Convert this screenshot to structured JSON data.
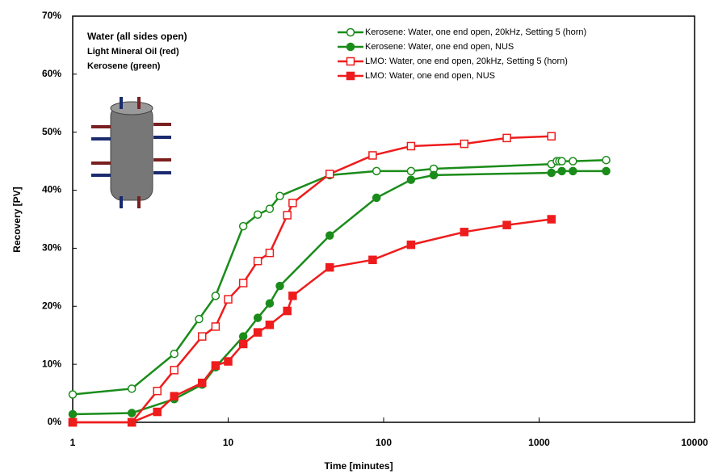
{
  "chart_data": {
    "type": "line",
    "x_label": "Time [minutes]",
    "y_label": "Recovery [PV]",
    "annotations": [
      "Water (all sides open)",
      "Light Mineral Oil (red)",
      "Kerosene (green)"
    ],
    "xscale": "log",
    "xlim": [
      1,
      10000
    ],
    "xticks": [
      1,
      10,
      100,
      1000,
      10000
    ],
    "ylim": [
      0,
      70
    ],
    "yticks": [
      {
        "value": 0,
        "label": "0%"
      },
      {
        "value": 10,
        "label": "10%"
      },
      {
        "value": 20,
        "label": "20%"
      },
      {
        "value": 30,
        "label": "30%"
      },
      {
        "value": 40,
        "label": "40%"
      },
      {
        "value": 50,
        "label": "50%"
      },
      {
        "value": 60,
        "label": "60%"
      },
      {
        "value": 70,
        "label": "70%"
      }
    ],
    "legend": "upper right",
    "series": [
      {
        "name": "Kerosene: Water, one end open, 20kHz, Setting 5 (horn)",
        "color": "#1a8c1a",
        "marker": "circle",
        "filled": false,
        "x": [
          1,
          2.4,
          4.5,
          6.5,
          8.3,
          12.5,
          15.5,
          18.5,
          21.5,
          45,
          90,
          150,
          210,
          1200,
          1300,
          1350,
          1400,
          1650,
          2700
        ],
        "values": [
          4.8,
          5.8,
          11.8,
          17.8,
          21.8,
          33.8,
          35.8,
          36.8,
          39,
          42.6,
          43.3,
          43.3,
          43.7,
          44.5,
          45,
          45,
          45,
          45,
          45.2
        ]
      },
      {
        "name": "Kerosene: Water, one end open, NUS",
        "color": "#1a8c1a",
        "marker": "circle",
        "filled": true,
        "x": [
          1,
          2.4,
          4.5,
          6.8,
          8.3,
          12.5,
          15.5,
          18.5,
          21.5,
          45,
          90,
          150,
          210,
          1200,
          1400,
          1650,
          2700
        ],
        "values": [
          1.4,
          1.6,
          4,
          6.5,
          9.5,
          14.8,
          18,
          20.5,
          23.5,
          32.2,
          38.7,
          41.8,
          42.6,
          43,
          43.3,
          43.3,
          43.3
        ]
      },
      {
        "name": "LMO: Water, one end open, 20kHz, Setting 5 (horn)",
        "color": "#ee1c1c",
        "marker": "square",
        "filled": false,
        "x": [
          1,
          2.4,
          3.5,
          4.5,
          6.8,
          8.3,
          10,
          12.5,
          15.5,
          18.5,
          24,
          26,
          45,
          85,
          150,
          330,
          620,
          1200
        ],
        "values": [
          0,
          0,
          5.4,
          9,
          14.8,
          16.5,
          21.2,
          24,
          27.8,
          29.2,
          35.7,
          37.8,
          42.8,
          46,
          47.6,
          48,
          49,
          49.3
        ]
      },
      {
        "name": "LMO: Water, one end open, NUS",
        "color": "#ee1c1c",
        "marker": "square",
        "filled": true,
        "x": [
          1,
          2.4,
          3.5,
          4.5,
          6.8,
          8.3,
          10,
          12.5,
          15.5,
          18.5,
          24,
          26,
          45,
          85,
          150,
          330,
          620,
          1200
        ],
        "values": [
          0,
          0,
          1.8,
          4.5,
          6.8,
          9.8,
          10.5,
          13.5,
          15.5,
          16.8,
          19.2,
          21.8,
          26.7,
          28,
          30.6,
          32.8,
          34,
          35
        ]
      }
    ]
  }
}
